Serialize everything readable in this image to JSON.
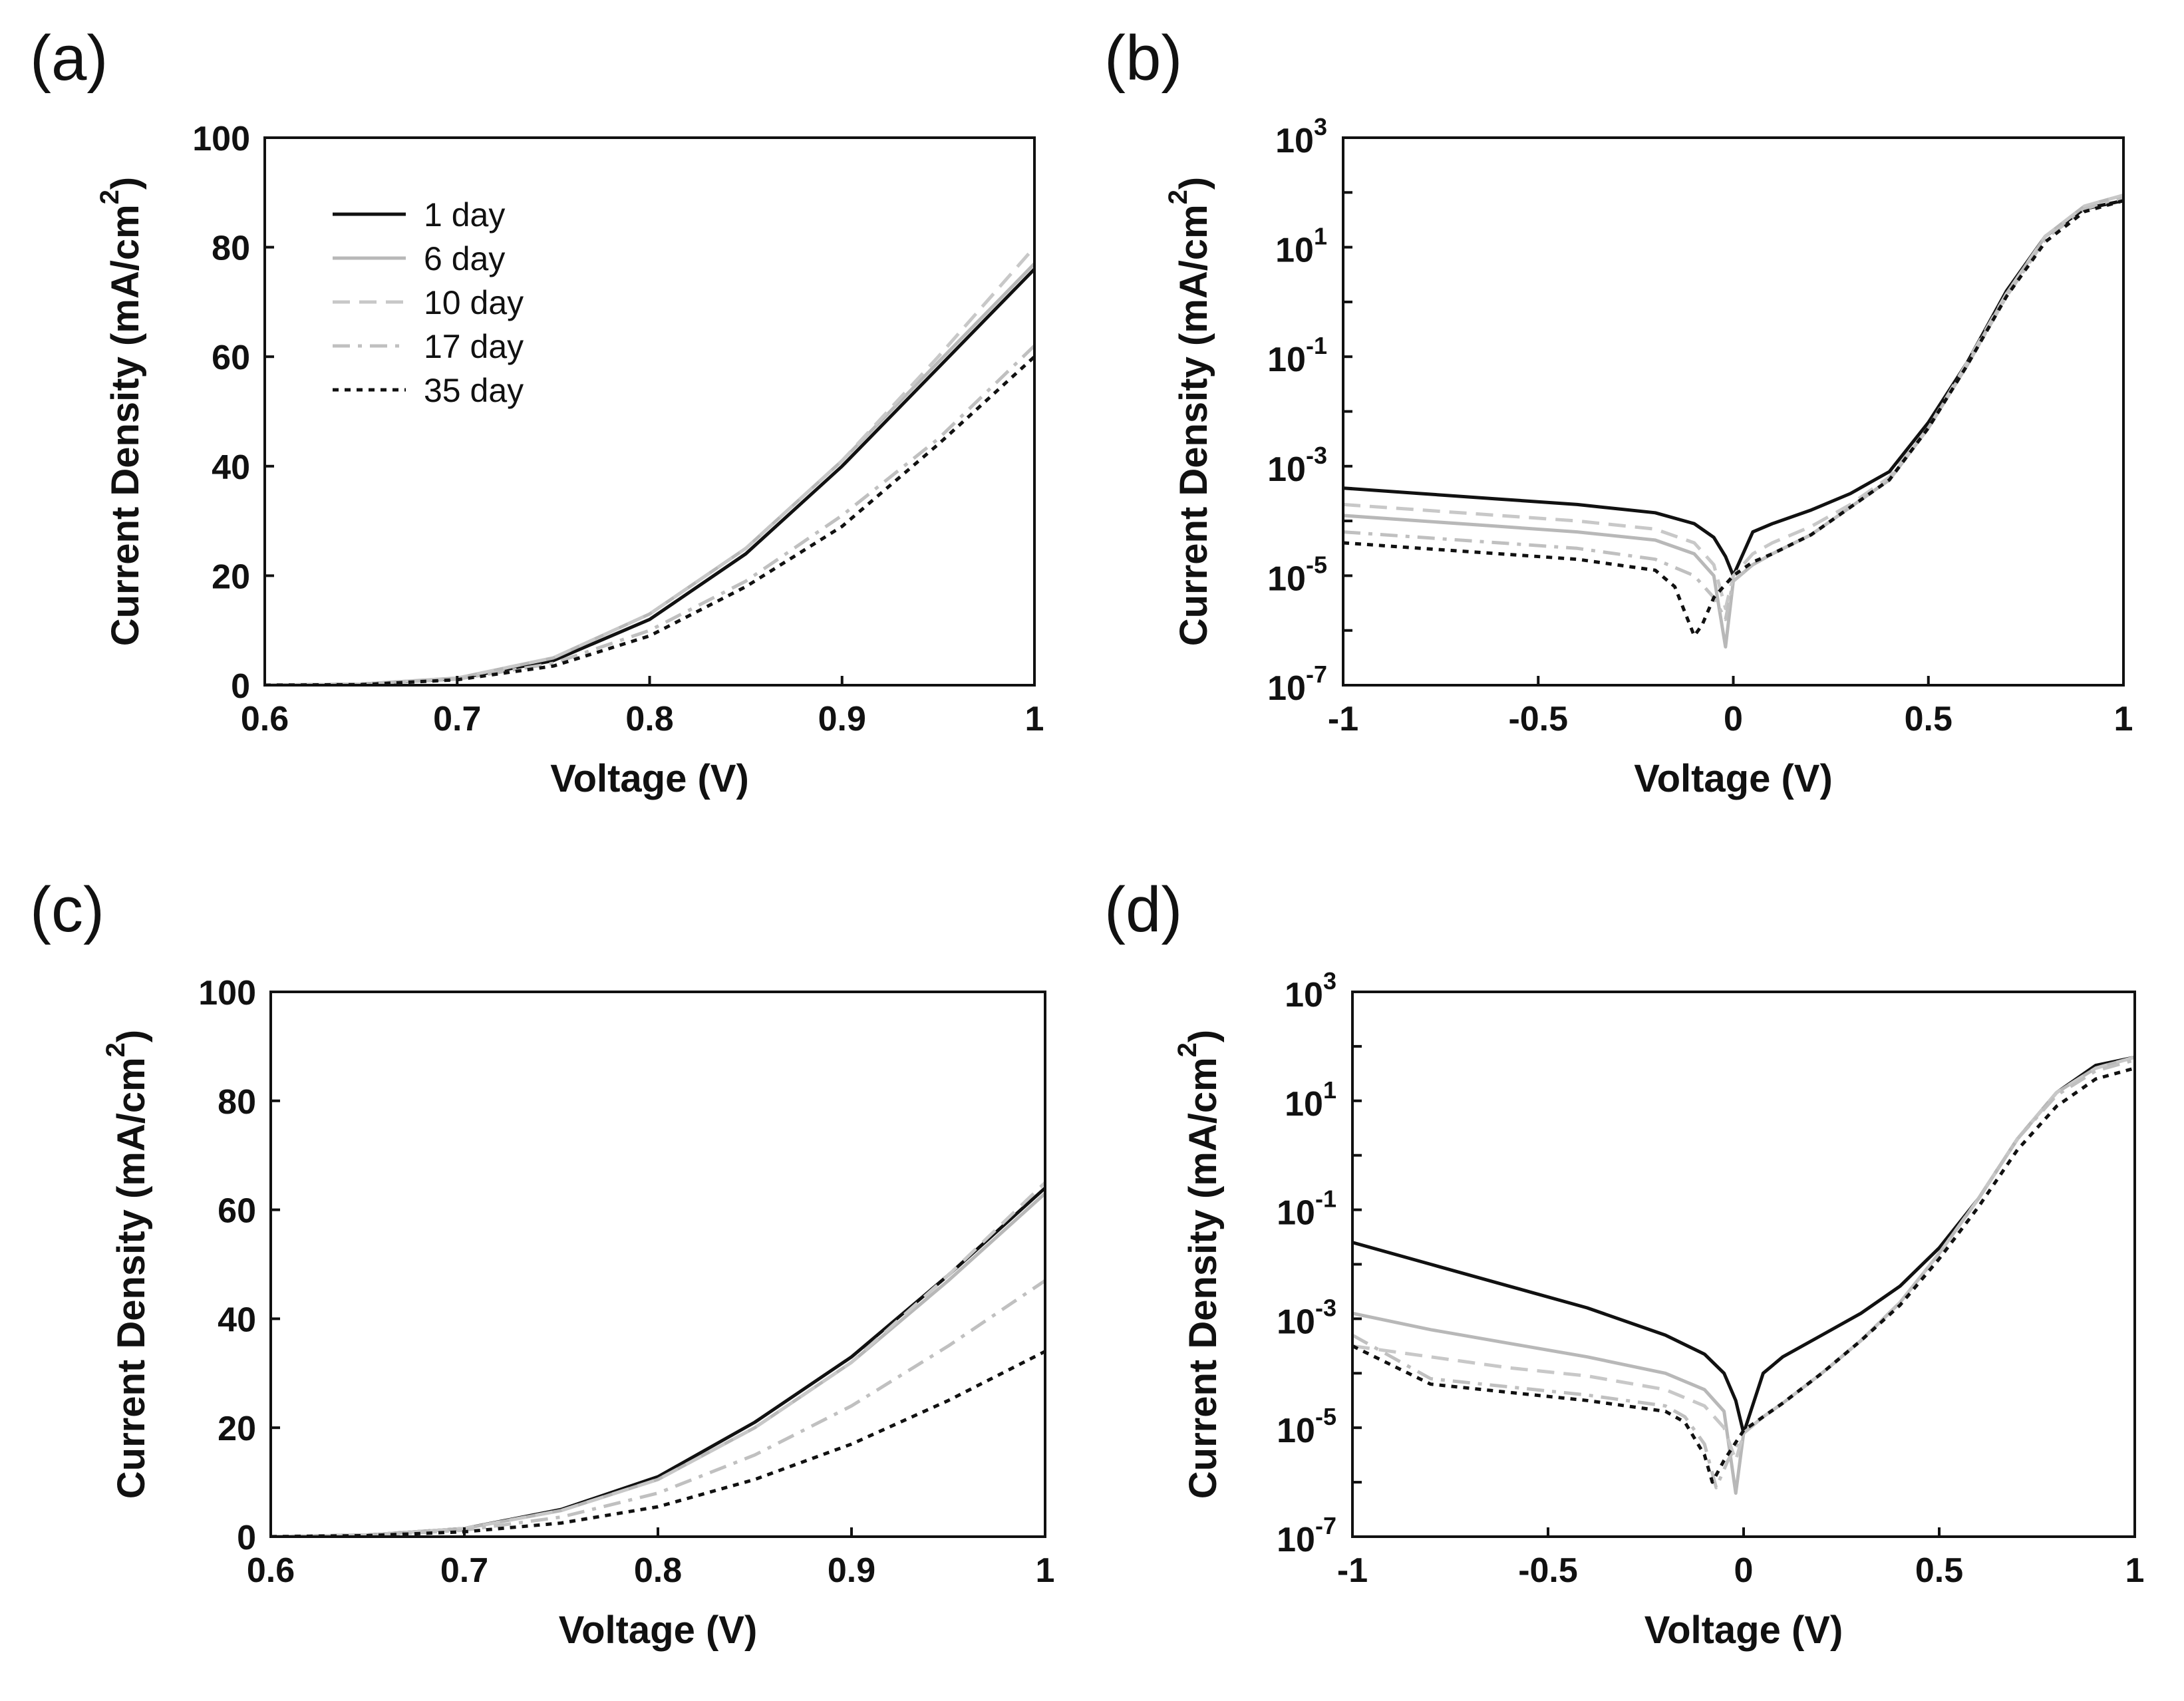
{
  "legend": [
    {
      "label": "1 day"
    },
    {
      "label": "6 day"
    },
    {
      "label": "10 day"
    },
    {
      "label": "17 day"
    },
    {
      "label": "35 day"
    }
  ],
  "styles": [
    {
      "color": "#111111",
      "dash": "solid"
    },
    {
      "color": "#b8b8b8",
      "dash": "solid"
    },
    {
      "color": "#c8c8c8",
      "dash": "dash"
    },
    {
      "color": "#c0c0c0",
      "dash": "dashdot"
    },
    {
      "color": "#111111",
      "dash": "dot"
    }
  ],
  "chart_data": [
    {
      "panel": "(a)",
      "type": "line",
      "yscale": "linear",
      "xlabel": "Voltage (V)",
      "ylabel": "Current Density (mA/cm",
      "ylabel_sup": "2",
      "ylabel_end": ")",
      "xlim": [
        0.6,
        1.0
      ],
      "ylim": [
        0,
        100
      ],
      "xticks": [
        {
          "v": 0.6,
          "t": "0.6"
        },
        {
          "v": 0.7,
          "t": "0.7"
        },
        {
          "v": 0.8,
          "t": "0.8"
        },
        {
          "v": 0.9,
          "t": "0.9"
        },
        {
          "v": 1.0,
          "t": "1"
        }
      ],
      "yticks": [
        {
          "v": 0,
          "t": "0"
        },
        {
          "v": 20,
          "t": "20"
        },
        {
          "v": 40,
          "t": "40"
        },
        {
          "v": 60,
          "t": "60"
        },
        {
          "v": 80,
          "t": "80"
        },
        {
          "v": 100,
          "t": "100"
        }
      ],
      "x": [
        0.6,
        0.65,
        0.7,
        0.75,
        0.8,
        0.85,
        0.9,
        0.95,
        1.0
      ],
      "series": [
        {
          "name": "1 day",
          "values": [
            0,
            0.2,
            1.2,
            4.5,
            12,
            24,
            40,
            58,
            76
          ]
        },
        {
          "name": "6 day",
          "values": [
            0,
            0.2,
            1.3,
            5,
            13,
            25,
            41,
            59,
            77
          ]
        },
        {
          "name": "10 day",
          "values": [
            0,
            0.2,
            1.3,
            5,
            13,
            25,
            41,
            60,
            80
          ]
        },
        {
          "name": "17 day",
          "values": [
            0,
            0.2,
            1.1,
            4,
            10,
            19,
            31,
            45,
            62
          ]
        },
        {
          "name": "35 day",
          "values": [
            0,
            0.1,
            1.0,
            3.5,
            9,
            18,
            29,
            44,
            60
          ]
        }
      ]
    },
    {
      "panel": "(b)",
      "type": "line",
      "yscale": "log",
      "xlabel": "Voltage (V)",
      "ylabel": "Current Density (mA/cm",
      "ylabel_sup": "2",
      "ylabel_end": ")",
      "xlim": [
        -1,
        1
      ],
      "ylim_exp": [
        -7,
        3
      ],
      "xticks": [
        {
          "v": -1,
          "t": "-1"
        },
        {
          "v": -0.5,
          "t": "-0.5"
        },
        {
          "v": 0,
          "t": "0"
        },
        {
          "v": 0.5,
          "t": "0.5"
        },
        {
          "v": 1,
          "t": "1"
        }
      ],
      "yticks": [
        {
          "v": -7,
          "t": "-7"
        },
        {
          "v": -5,
          "t": "-5"
        },
        {
          "v": -3,
          "t": "-3"
        },
        {
          "v": -1,
          "t": "-1"
        },
        {
          "v": 1,
          "t": "1"
        },
        {
          "v": 3,
          "t": "3"
        }
      ],
      "series": [
        {
          "name": "1 day",
          "x": [
            -1,
            -0.8,
            -0.6,
            -0.4,
            -0.2,
            -0.1,
            -0.05,
            -0.02,
            0,
            0.05,
            0.1,
            0.2,
            0.3,
            0.4,
            0.5,
            0.6,
            0.7,
            0.8,
            0.9,
            1
          ],
          "logy": [
            -3.4,
            -3.5,
            -3.6,
            -3.7,
            -3.85,
            -4.05,
            -4.3,
            -4.65,
            -5.0,
            -4.2,
            -4.05,
            -3.8,
            -3.5,
            -3.1,
            -2.2,
            -1.1,
            0.2,
            1.2,
            1.7,
            1.85
          ]
        },
        {
          "name": "6 day",
          "x": [
            -1,
            -0.8,
            -0.6,
            -0.4,
            -0.2,
            -0.1,
            -0.05,
            -0.02,
            0,
            0.05,
            0.1,
            0.2,
            0.3,
            0.4,
            0.5,
            0.6,
            0.7,
            0.8,
            0.9,
            1
          ],
          "logy": [
            -3.9,
            -4.0,
            -4.1,
            -4.2,
            -4.35,
            -4.6,
            -5.0,
            -6.3,
            -5.1,
            -4.8,
            -4.6,
            -4.25,
            -3.75,
            -3.25,
            -2.3,
            -1.15,
            0.15,
            1.2,
            1.75,
            1.95
          ]
        },
        {
          "name": "10 day",
          "x": [
            -1,
            -0.8,
            -0.6,
            -0.4,
            -0.2,
            -0.1,
            -0.05,
            -0.02,
            0,
            0.05,
            0.1,
            0.2,
            0.3,
            0.4,
            0.5,
            0.6,
            0.7,
            0.8,
            0.9,
            1
          ],
          "logy": [
            -3.7,
            -3.8,
            -3.9,
            -4.0,
            -4.15,
            -4.4,
            -4.8,
            -5.6,
            -5.0,
            -4.6,
            -4.4,
            -4.1,
            -3.7,
            -3.2,
            -2.3,
            -1.1,
            0.15,
            1.2,
            1.75,
            1.95
          ]
        },
        {
          "name": "17 day",
          "x": [
            -1,
            -0.8,
            -0.6,
            -0.4,
            -0.2,
            -0.1,
            -0.05,
            -0.02,
            0,
            0.05,
            0.1,
            0.2,
            0.3,
            0.4,
            0.5,
            0.6,
            0.7,
            0.8,
            0.9,
            1
          ],
          "logy": [
            -4.2,
            -4.3,
            -4.4,
            -4.5,
            -4.7,
            -5.0,
            -5.4,
            -5.8,
            -5.1,
            -4.8,
            -4.6,
            -4.25,
            -3.75,
            -3.25,
            -2.3,
            -1.15,
            0.1,
            1.15,
            1.7,
            1.9
          ]
        },
        {
          "name": "35 day",
          "x": [
            -1,
            -0.8,
            -0.6,
            -0.4,
            -0.2,
            -0.15,
            -0.1,
            -0.08,
            -0.05,
            0,
            0.05,
            0.1,
            0.2,
            0.3,
            0.4,
            0.5,
            0.6,
            0.7,
            0.8,
            0.9,
            1
          ],
          "logy": [
            -4.4,
            -4.5,
            -4.6,
            -4.7,
            -4.9,
            -5.2,
            -6.1,
            -5.9,
            -5.4,
            -5.0,
            -4.75,
            -4.6,
            -4.25,
            -3.75,
            -3.25,
            -2.3,
            -1.15,
            0.1,
            1.1,
            1.65,
            1.85
          ]
        }
      ]
    },
    {
      "panel": "(c)",
      "type": "line",
      "yscale": "linear",
      "xlabel": "Voltage (V)",
      "ylabel": "Current Density (mA/cm",
      "ylabel_sup": "2",
      "ylabel_end": ")",
      "xlim": [
        0.6,
        1.0
      ],
      "ylim": [
        0,
        100
      ],
      "xticks": [
        {
          "v": 0.6,
          "t": "0.6"
        },
        {
          "v": 0.7,
          "t": "0.7"
        },
        {
          "v": 0.8,
          "t": "0.8"
        },
        {
          "v": 0.9,
          "t": "0.9"
        },
        {
          "v": 1.0,
          "t": "1"
        }
      ],
      "yticks": [
        {
          "v": 0,
          "t": "0"
        },
        {
          "v": 20,
          "t": "20"
        },
        {
          "v": 40,
          "t": "40"
        },
        {
          "v": 60,
          "t": "60"
        },
        {
          "v": 80,
          "t": "80"
        },
        {
          "v": 100,
          "t": "100"
        }
      ],
      "x": [
        0.6,
        0.65,
        0.7,
        0.75,
        0.8,
        0.85,
        0.9,
        0.95,
        1.0
      ],
      "series": [
        {
          "name": "1 day",
          "values": [
            0,
            0.3,
            1.5,
            5,
            11,
            21,
            33,
            48,
            64
          ]
        },
        {
          "name": "6 day",
          "values": [
            0,
            0.3,
            1.5,
            4.8,
            10.5,
            20,
            32,
            47,
            63
          ]
        },
        {
          "name": "10 day",
          "values": [
            0,
            0.3,
            1.5,
            4.8,
            10.5,
            20,
            32,
            48,
            65
          ]
        },
        {
          "name": "17 day",
          "values": [
            0,
            0.2,
            1.2,
            3.6,
            8,
            15,
            24,
            35,
            47
          ]
        },
        {
          "name": "35 day",
          "values": [
            0,
            0.2,
            0.9,
            2.5,
            5.5,
            10.5,
            17,
            25,
            34
          ]
        }
      ]
    },
    {
      "panel": "(d)",
      "type": "line",
      "yscale": "log",
      "xlabel": "Voltage (V)",
      "ylabel": "Current Density (mA/cm",
      "ylabel_sup": "2",
      "ylabel_end": ")",
      "xlim": [
        -1,
        1
      ],
      "ylim_exp": [
        -7,
        3
      ],
      "xticks": [
        {
          "v": -1,
          "t": "-1"
        },
        {
          "v": -0.5,
          "t": "-0.5"
        },
        {
          "v": 0,
          "t": "0"
        },
        {
          "v": 0.5,
          "t": "0.5"
        },
        {
          "v": 1,
          "t": "1"
        }
      ],
      "yticks": [
        {
          "v": -7,
          "t": "-7"
        },
        {
          "v": -5,
          "t": "-5"
        },
        {
          "v": -3,
          "t": "-3"
        },
        {
          "v": -1,
          "t": "-1"
        },
        {
          "v": 1,
          "t": "1"
        },
        {
          "v": 3,
          "t": "3"
        }
      ],
      "series": [
        {
          "name": "1 day",
          "x": [
            -1,
            -0.8,
            -0.6,
            -0.4,
            -0.2,
            -0.1,
            -0.05,
            -0.02,
            0,
            0.05,
            0.1,
            0.2,
            0.3,
            0.4,
            0.5,
            0.6,
            0.7,
            0.8,
            0.9,
            1
          ],
          "logy": [
            -1.6,
            -2.0,
            -2.4,
            -2.8,
            -3.3,
            -3.65,
            -4.0,
            -4.5,
            -5.1,
            -4.0,
            -3.7,
            -3.3,
            -2.9,
            -2.4,
            -1.7,
            -0.8,
            0.3,
            1.15,
            1.65,
            1.8
          ]
        },
        {
          "name": "6 day",
          "x": [
            -1,
            -0.8,
            -0.6,
            -0.4,
            -0.2,
            -0.1,
            -0.05,
            -0.02,
            0,
            0.05,
            0.1,
            0.2,
            0.3,
            0.4,
            0.5,
            0.6,
            0.7,
            0.8,
            0.9,
            1
          ],
          "logy": [
            -2.9,
            -3.2,
            -3.45,
            -3.7,
            -4.0,
            -4.3,
            -4.7,
            -6.2,
            -5.1,
            -4.8,
            -4.55,
            -4.0,
            -3.4,
            -2.7,
            -1.8,
            -0.8,
            0.3,
            1.15,
            1.6,
            1.8
          ]
        },
        {
          "name": "10 day",
          "x": [
            -1,
            -0.8,
            -0.6,
            -0.4,
            -0.2,
            -0.1,
            -0.05,
            -0.02,
            0,
            0.05,
            0.1,
            0.2,
            0.3,
            0.4,
            0.5,
            0.6,
            0.7,
            0.8,
            0.9,
            1
          ],
          "logy": [
            -3.5,
            -3.7,
            -3.9,
            -4.05,
            -4.3,
            -4.6,
            -5.0,
            -5.6,
            -5.1,
            -4.8,
            -4.55,
            -4.0,
            -3.4,
            -2.7,
            -1.8,
            -0.8,
            0.3,
            1.15,
            1.6,
            1.8
          ]
        },
        {
          "name": "17 day",
          "x": [
            -1,
            -0.8,
            -0.6,
            -0.4,
            -0.2,
            -0.15,
            -0.1,
            -0.07,
            -0.04,
            0,
            0.05,
            0.1,
            0.2,
            0.3,
            0.4,
            0.5,
            0.6,
            0.7,
            0.8,
            0.9,
            1
          ],
          "logy": [
            -3.3,
            -4.1,
            -4.25,
            -4.4,
            -4.6,
            -4.8,
            -5.3,
            -6.1,
            -5.6,
            -5.1,
            -4.8,
            -4.55,
            -4.0,
            -3.4,
            -2.7,
            -1.8,
            -0.8,
            0.3,
            1.1,
            1.55,
            1.75
          ]
        },
        {
          "name": "35 day",
          "x": [
            -1,
            -0.8,
            -0.6,
            -0.4,
            -0.2,
            -0.15,
            -0.1,
            -0.08,
            -0.05,
            0,
            0.05,
            0.1,
            0.2,
            0.3,
            0.4,
            0.5,
            0.6,
            0.7,
            0.8,
            0.9,
            1
          ],
          "logy": [
            -3.5,
            -4.2,
            -4.35,
            -4.5,
            -4.7,
            -4.9,
            -5.5,
            -6.0,
            -5.6,
            -5.05,
            -4.8,
            -4.55,
            -4.0,
            -3.4,
            -2.75,
            -1.9,
            -0.95,
            0.1,
            0.9,
            1.4,
            1.6
          ]
        }
      ]
    }
  ]
}
